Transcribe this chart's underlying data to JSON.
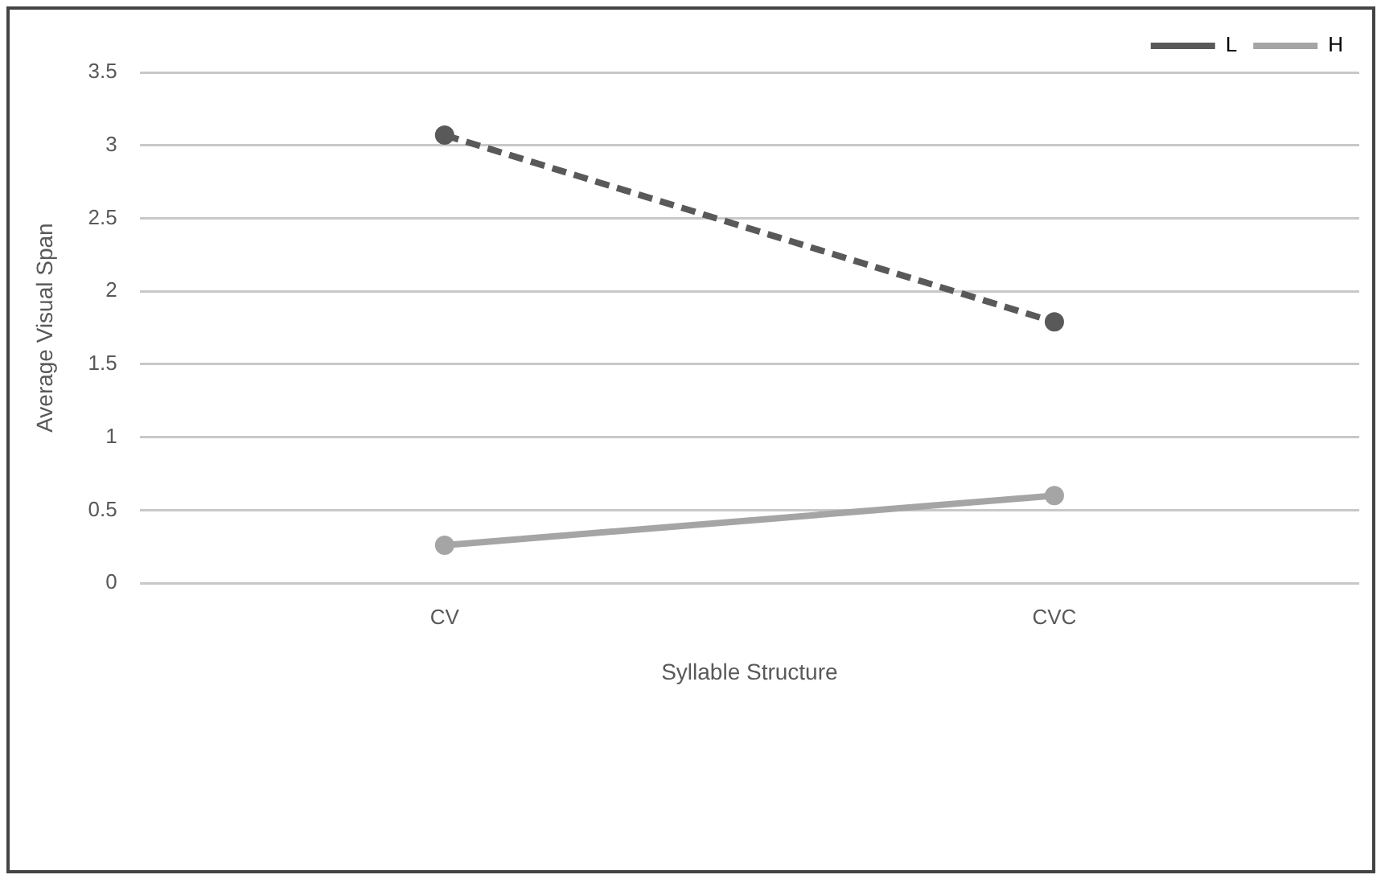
{
  "chart_data": {
    "type": "line",
    "xlabel": "Syllable Structure",
    "ylabel": "Average Visual Span",
    "categories": [
      "CV",
      "CVC"
    ],
    "series": [
      {
        "name": "L",
        "color": "#595959",
        "values": [
          3.07,
          1.79
        ],
        "line_style": "dashed"
      },
      {
        "name": "H",
        "color": "#a5a5a5",
        "values": [
          0.26,
          0.6
        ],
        "line_style": "solid"
      }
    ],
    "ylim": [
      0,
      3.5
    ],
    "yticks": [
      0,
      0.5,
      1,
      1.5,
      2,
      2.5,
      3,
      3.5
    ],
    "grid": "y",
    "legend": "top right",
    "marker": "circle"
  }
}
